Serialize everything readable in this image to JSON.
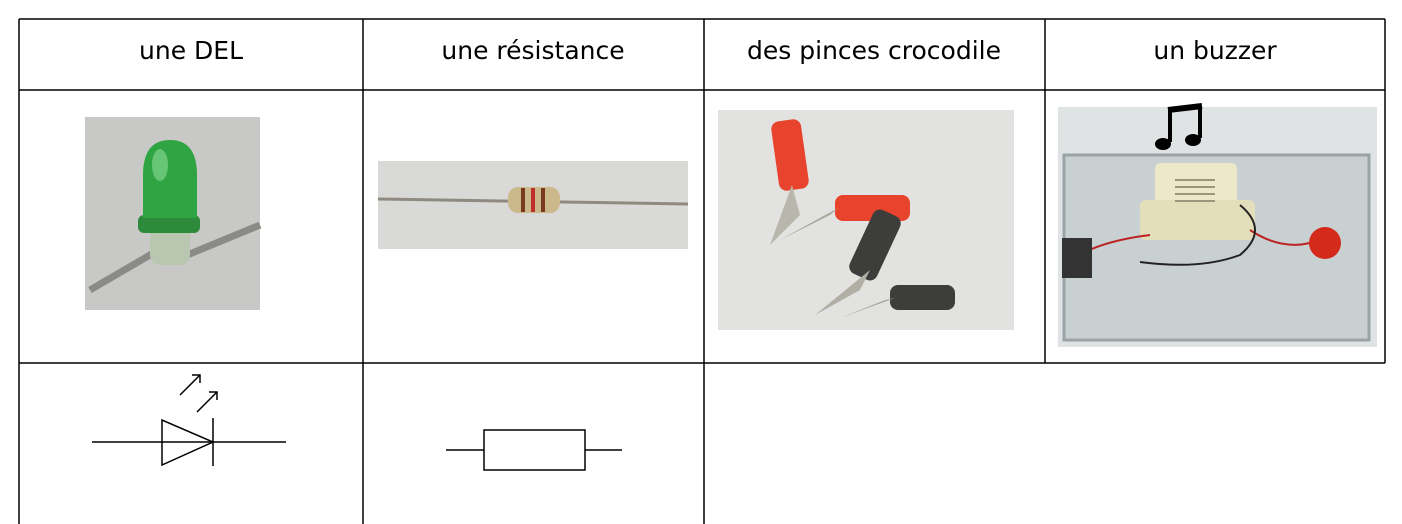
{
  "table": {
    "header": [
      "une DEL",
      "une résistance",
      "des pinces crocodile",
      "un buzzer"
    ]
  }
}
